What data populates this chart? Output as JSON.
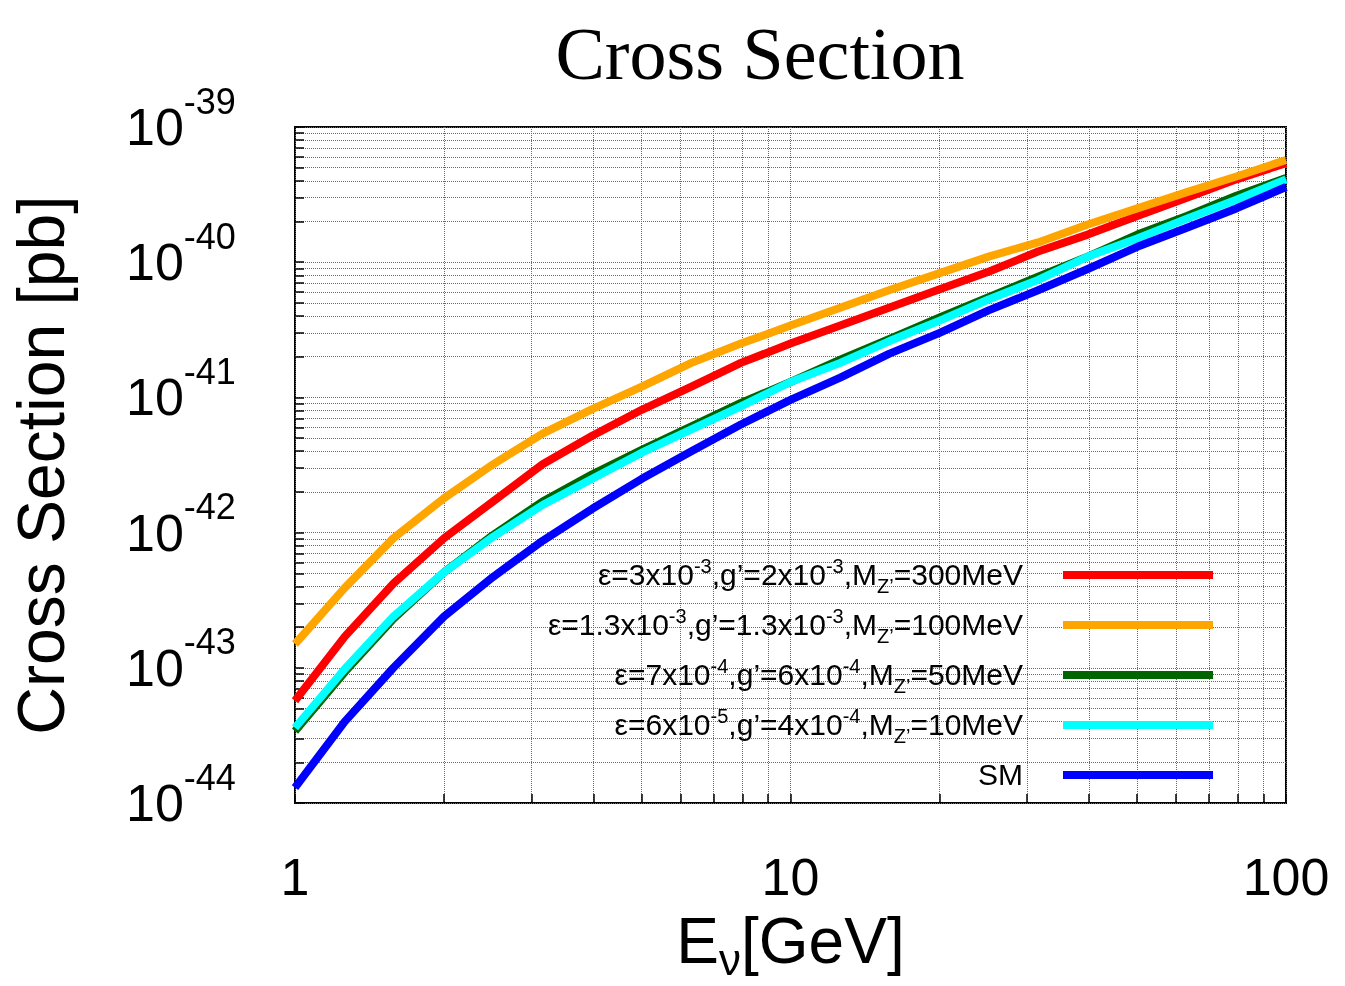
{
  "chart_data": {
    "type": "line",
    "title": "Cross Section",
    "xlabel": "E$_{ν}$[GeV]",
    "ylabel": "Cross Section [pb]",
    "x": [
      1,
      1.26,
      1.58,
      2,
      2.51,
      3.16,
      3.98,
      5.01,
      6.31,
      7.94,
      10,
      12.6,
      15.8,
      20,
      25.1,
      31.6,
      39.8,
      50.1,
      63.1,
      79.4,
      100
    ],
    "series": [
      {
        "name": "ε=3x10$^{-3}$,g’=2x10$^{-3}$,M$_{Z’}$=300MeV",
        "color": "#ff0000",
        "values": [
          5.7e-44,
          1.7e-43,
          4.2e-43,
          9.1e-43,
          1.7e-42,
          3.2e-42,
          5.2e-42,
          8.1e-42,
          1.2e-41,
          1.8e-41,
          2.5e-41,
          3.4e-41,
          4.6e-41,
          6.3e-41,
          8.5e-41,
          1.2e-40,
          1.6e-40,
          2.2e-40,
          3e-40,
          4.1e-40,
          5.4e-40
        ]
      },
      {
        "name": "ε=1.3x10$^{-3}$,g’=1.3x10$^{-3}$,M$_{Z’}$=100MeV",
        "color": "#ffa500",
        "values": [
          1.5e-43,
          3.9e-43,
          9.1e-43,
          1.8e-42,
          3.2e-42,
          5.4e-42,
          8.2e-42,
          1.2e-41,
          1.8e-41,
          2.5e-41,
          3.4e-41,
          4.6e-41,
          6.2e-41,
          8.3e-41,
          1.1e-40,
          1.4e-40,
          1.9e-40,
          2.5e-40,
          3.3e-40,
          4.3e-40,
          5.7e-40
        ]
      },
      {
        "name": "ε=7x10$^{-4}$,g’=6x10$^{-4}$,M$_{Z’}$=50MeV",
        "color": "#006400",
        "values": [
          3.4e-44,
          9.3e-44,
          2.3e-43,
          5.1e-43,
          9.6e-43,
          1.7e-42,
          2.7e-42,
          4.1e-42,
          6.1e-42,
          9.1e-42,
          1.3e-41,
          1.9e-41,
          2.7e-41,
          3.9e-41,
          5.5e-41,
          7.8e-41,
          1.1e-40,
          1.6e-40,
          2.2e-40,
          3.1e-40,
          4.2e-40
        ]
      },
      {
        "name": "ε=6x10$^{-5}$,g’=4x10$^{-4}$,M$_{Z’}$=10MeV",
        "color": "#00ffff",
        "values": [
          3.6e-44,
          9.8e-44,
          2.4e-43,
          5.1e-43,
          9.3e-43,
          1.6e-42,
          2.5e-42,
          3.9e-42,
          5.8e-42,
          8.6e-42,
          1.3e-41,
          1.8e-41,
          2.6e-41,
          3.7e-41,
          5.3e-41,
          7.4e-41,
          1.1e-40,
          1.5e-40,
          2.1e-40,
          2.9e-40,
          4.1e-40
        ]
      },
      {
        "name": "SM",
        "color": "#0000ff",
        "values": [
          1.3e-44,
          4e-44,
          1e-43,
          2.4e-43,
          4.7e-43,
          8.7e-43,
          1.5e-42,
          2.5e-42,
          4e-42,
          6.3e-42,
          9.6e-42,
          1.4e-41,
          2.1e-41,
          3e-41,
          4.4e-41,
          6.2e-41,
          8.9e-41,
          1.3e-40,
          1.8e-40,
          2.5e-40,
          3.6e-40
        ]
      }
    ],
    "xlim": [
      1,
      100
    ],
    "xticks": [
      1,
      {
        "value": 2,
        "label": null
      },
      {
        "value": 3,
        "label": null
      },
      {
        "value": 4,
        "label": null
      },
      {
        "value": 5,
        "label": null
      },
      {
        "value": 6,
        "label": null
      },
      {
        "value": 7,
        "label": null
      },
      {
        "value": 8,
        "label": null
      },
      {
        "value": 9,
        "label": null
      },
      10,
      {
        "value": 20,
        "label": null
      },
      {
        "value": 30,
        "label": null
      },
      {
        "value": 40,
        "label": null
      },
      {
        "value": 50,
        "label": null
      },
      {
        "value": 60,
        "label": null
      },
      {
        "value": 70,
        "label": null
      },
      {
        "value": 80,
        "label": null
      },
      {
        "value": 90,
        "label": null
      },
      100
    ],
    "ylim": [
      1e-44,
      1e-39
    ],
    "yticks": [
      {
        "value": 1e-44,
        "label": "10$^{-44}$"
      },
      {
        "value": 2e-44,
        "label": null
      },
      {
        "value": 3e-44,
        "label": null
      },
      {
        "value": 4e-44,
        "label": null
      },
      {
        "value": 5e-44,
        "label": null
      },
      {
        "value": 6e-44,
        "label": null
      },
      {
        "value": 7e-44,
        "label": null
      },
      {
        "value": 8e-44,
        "label": null
      },
      {
        "value": 9e-44,
        "label": null
      },
      {
        "value": 1e-43,
        "label": "10$^{-43}$"
      },
      {
        "value": 2e-43,
        "label": null
      },
      {
        "value": 3e-43,
        "label": null
      },
      {
        "value": 4e-43,
        "label": null
      },
      {
        "value": 5e-43,
        "label": null
      },
      {
        "value": 6e-43,
        "label": null
      },
      {
        "value": 7e-43,
        "label": null
      },
      {
        "value": 8e-43,
        "label": null
      },
      {
        "value": 9e-43,
        "label": null
      },
      {
        "value": 1e-42,
        "label": "10$^{-42}$"
      },
      {
        "value": 2e-42,
        "label": null
      },
      {
        "value": 3e-42,
        "label": null
      },
      {
        "value": 4e-42,
        "label": null
      },
      {
        "value": 5e-42,
        "label": null
      },
      {
        "value": 6e-42,
        "label": null
      },
      {
        "value": 7e-42,
        "label": null
      },
      {
        "value": 8e-42,
        "label": null
      },
      {
        "value": 9e-42,
        "label": null
      },
      {
        "value": 1e-41,
        "label": "10$^{-41}$"
      },
      {
        "value": 2e-41,
        "label": null
      },
      {
        "value": 3e-41,
        "label": null
      },
      {
        "value": 4e-41,
        "label": null
      },
      {
        "value": 5e-41,
        "label": null
      },
      {
        "value": 6e-41,
        "label": null
      },
      {
        "value": 7e-41,
        "label": null
      },
      {
        "value": 8e-41,
        "label": null
      },
      {
        "value": 9e-41,
        "label": null
      },
      {
        "value": 1e-40,
        "label": "10$^{-40}$"
      },
      {
        "value": 2e-40,
        "label": null
      },
      {
        "value": 3e-40,
        "label": null
      },
      {
        "value": 4e-40,
        "label": null
      },
      {
        "value": 5e-40,
        "label": null
      },
      {
        "value": 6e-40,
        "label": null
      },
      {
        "value": 7e-40,
        "label": null
      },
      {
        "value": 8e-40,
        "label": null
      },
      {
        "value": 9e-40,
        "label": null
      },
      {
        "value": 1e-39,
        "label": "10$^{-39}$"
      }
    ],
    "log": "xy",
    "grid": true,
    "legend": "bottom right"
  }
}
